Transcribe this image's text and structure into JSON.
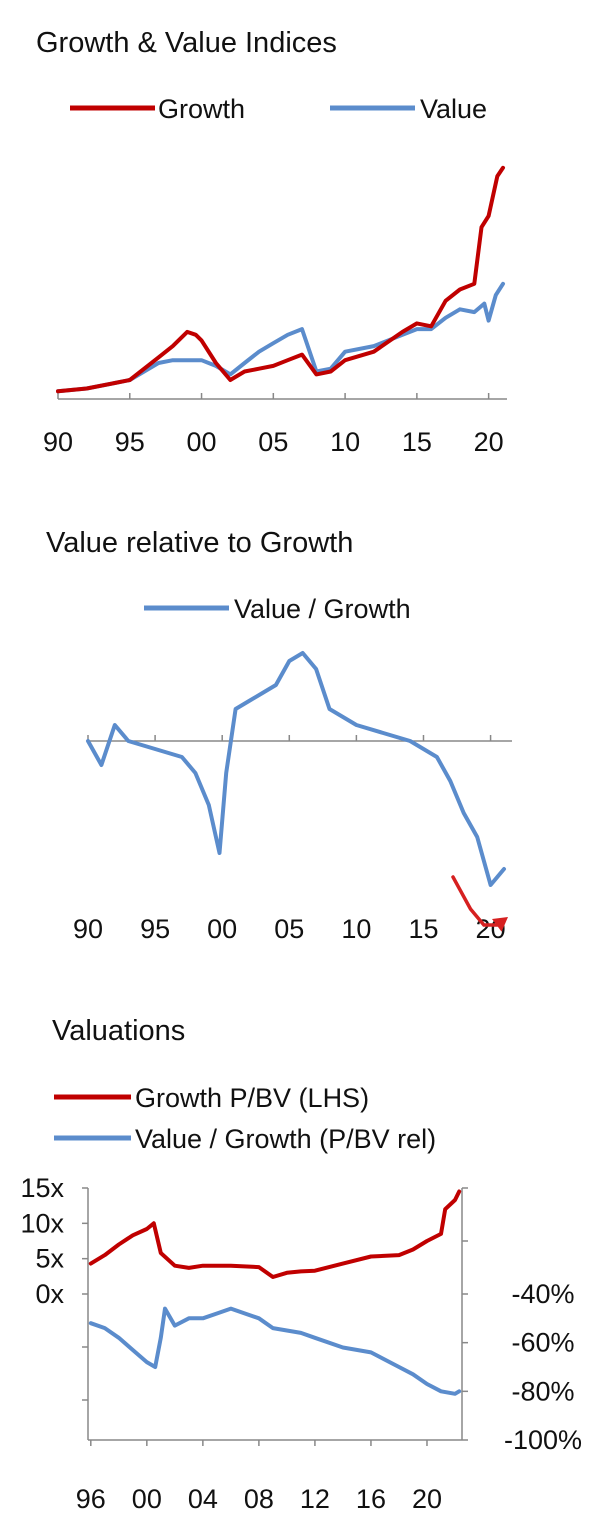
{
  "chart_data": [
    {
      "type": "line",
      "title": "Growth & Value Indices",
      "xlabel": "",
      "ylabel": "",
      "x_ticks": [
        "90",
        "95",
        "00",
        "05",
        "10",
        "15",
        "20"
      ],
      "x_range": [
        1990,
        2021
      ],
      "ylim": [
        0,
        8.2
      ],
      "grid": false,
      "legend": "top",
      "series": [
        {
          "name": "Growth",
          "color": "#c00000",
          "points": [
            [
              1990,
              0.2
            ],
            [
              1992,
              0.3
            ],
            [
              1994,
              0.5
            ],
            [
              1995,
              0.6
            ],
            [
              1997,
              1.4
            ],
            [
              1998,
              1.8
            ],
            [
              1999,
              2.3
            ],
            [
              1999.6,
              2.2
            ],
            [
              2000,
              2.0
            ],
            [
              2001,
              1.2
            ],
            [
              2002,
              0.6
            ],
            [
              2003,
              0.9
            ],
            [
              2004,
              1.0
            ],
            [
              2005,
              1.1
            ],
            [
              2006,
              1.3
            ],
            [
              2007,
              1.5
            ],
            [
              2008,
              0.8
            ],
            [
              2009,
              0.9
            ],
            [
              2010,
              1.3
            ],
            [
              2012,
              1.6
            ],
            [
              2014,
              2.3
            ],
            [
              2015,
              2.6
            ],
            [
              2016,
              2.5
            ],
            [
              2017,
              3.4
            ],
            [
              2018,
              3.8
            ],
            [
              2019,
              4.0
            ],
            [
              2019.5,
              6.0
            ],
            [
              2020,
              6.4
            ],
            [
              2020.6,
              7.8
            ],
            [
              2021,
              8.1
            ]
          ]
        },
        {
          "name": "Value",
          "color": "#5b8ccc",
          "points": [
            [
              1990,
              0.2
            ],
            [
              1992,
              0.3
            ],
            [
              1994,
              0.5
            ],
            [
              1995,
              0.6
            ],
            [
              1997,
              1.2
            ],
            [
              1998,
              1.3
            ],
            [
              1999,
              1.3
            ],
            [
              2000,
              1.3
            ],
            [
              2001,
              1.1
            ],
            [
              2002,
              0.8
            ],
            [
              2003,
              1.2
            ],
            [
              2004,
              1.6
            ],
            [
              2005,
              1.9
            ],
            [
              2006,
              2.2
            ],
            [
              2007,
              2.4
            ],
            [
              2008,
              0.9
            ],
            [
              2009,
              1.0
            ],
            [
              2010,
              1.6
            ],
            [
              2012,
              1.8
            ],
            [
              2014,
              2.2
            ],
            [
              2015,
              2.4
            ],
            [
              2016,
              2.4
            ],
            [
              2017,
              2.8
            ],
            [
              2018,
              3.1
            ],
            [
              2019,
              3.0
            ],
            [
              2019.7,
              3.3
            ],
            [
              2020,
              2.7
            ],
            [
              2020.5,
              3.6
            ],
            [
              2021,
              4.0
            ]
          ]
        }
      ]
    },
    {
      "type": "line",
      "title": "Value relative to Growth",
      "xlabel": "",
      "ylabel": "",
      "x_ticks": [
        "90",
        "95",
        "00",
        "05",
        "10",
        "15",
        "20"
      ],
      "x_range": [
        1990,
        2021
      ],
      "ylim": [
        -1.0,
        0.6
      ],
      "grid": false,
      "legend": "top",
      "series": [
        {
          "name": "Value / Growth",
          "color": "#5b8ccc",
          "points": [
            [
              1990,
              0.0
            ],
            [
              1991,
              -0.15
            ],
            [
              1992,
              0.1
            ],
            [
              1993,
              0.0
            ],
            [
              1995,
              -0.05
            ],
            [
              1997,
              -0.1
            ],
            [
              1998,
              -0.2
            ],
            [
              1999,
              -0.4
            ],
            [
              1999.8,
              -0.7
            ],
            [
              2000.3,
              -0.2
            ],
            [
              2001,
              0.2
            ],
            [
              2002,
              0.25
            ],
            [
              2003,
              0.3
            ],
            [
              2004,
              0.35
            ],
            [
              2005,
              0.5
            ],
            [
              2006,
              0.55
            ],
            [
              2007,
              0.45
            ],
            [
              2008,
              0.2
            ],
            [
              2010,
              0.1
            ],
            [
              2012,
              0.05
            ],
            [
              2014,
              0.0
            ],
            [
              2015,
              -0.05
            ],
            [
              2016,
              -0.1
            ],
            [
              2017,
              -0.25
            ],
            [
              2018,
              -0.45
            ],
            [
              2019,
              -0.6
            ],
            [
              2020,
              -0.9
            ],
            [
              2020.5,
              -0.85
            ],
            [
              2021,
              -0.8
            ]
          ]
        }
      ],
      "annotations": [
        {
          "type": "arrow",
          "color": "#d62020",
          "points": [
            [
              2017.2,
              -0.85
            ],
            [
              2018.5,
              -1.05
            ],
            [
              2019.5,
              -1.15
            ],
            [
              2020.5,
              -1.15
            ],
            [
              2021.3,
              -1.1
            ]
          ]
        }
      ]
    },
    {
      "type": "line",
      "title": "Valuations",
      "xlabel": "",
      "ylabel": "",
      "x_ticks": [
        "96",
        "00",
        "04",
        "08",
        "12",
        "16",
        "20"
      ],
      "x_range": [
        1995.8,
        2022.5
      ],
      "y_left": {
        "ticks": [
          "15x",
          "10x",
          "5x",
          "0x"
        ],
        "values": [
          15,
          10,
          5,
          0
        ],
        "range": [
          0,
          15
        ]
      },
      "y_right": {
        "ticks": [
          "-40%",
          "-60%",
          "-80%",
          "-100%"
        ],
        "values": [
          -40,
          -60,
          -80,
          -100
        ],
        "range": [
          -100,
          -40
        ]
      },
      "grid": false,
      "legend": "top-left",
      "series": [
        {
          "name": "Growth P/BV (LHS)",
          "color": "#c00000",
          "axis": "left",
          "points": [
            [
              1996,
              4.3
            ],
            [
              1997,
              5.5
            ],
            [
              1998,
              7.0
            ],
            [
              1999,
              8.3
            ],
            [
              2000,
              9.2
            ],
            [
              2000.5,
              10.0
            ],
            [
              2001,
              5.8
            ],
            [
              2002,
              4.0
            ],
            [
              2003,
              3.7
            ],
            [
              2004,
              4.0
            ],
            [
              2006,
              4.0
            ],
            [
              2008,
              3.8
            ],
            [
              2009,
              2.4
            ],
            [
              2010,
              3.0
            ],
            [
              2011,
              3.2
            ],
            [
              2012,
              3.3
            ],
            [
              2014,
              4.3
            ],
            [
              2016,
              5.3
            ],
            [
              2018,
              5.5
            ],
            [
              2019,
              6.3
            ],
            [
              2020,
              7.5
            ],
            [
              2021,
              8.5
            ],
            [
              2021.3,
              12.0
            ],
            [
              2022,
              13.3
            ],
            [
              2022.3,
              14.5
            ]
          ]
        },
        {
          "name": "Value / Growth (P/BV rel)",
          "color": "#5b8ccc",
          "axis": "right",
          "points": [
            [
              1996,
              -52
            ],
            [
              1997,
              -54
            ],
            [
              1998,
              -58
            ],
            [
              1999,
              -63
            ],
            [
              2000,
              -68
            ],
            [
              2000.6,
              -70
            ],
            [
              2001,
              -58
            ],
            [
              2001.3,
              -46
            ],
            [
              2002,
              -53
            ],
            [
              2003,
              -50
            ],
            [
              2004,
              -50
            ],
            [
              2005,
              -48
            ],
            [
              2006,
              -46
            ],
            [
              2007,
              -48
            ],
            [
              2008,
              -50
            ],
            [
              2009,
              -54
            ],
            [
              2010,
              -55
            ],
            [
              2011,
              -56
            ],
            [
              2012,
              -58
            ],
            [
              2014,
              -62
            ],
            [
              2016,
              -64
            ],
            [
              2018,
              -70
            ],
            [
              2019,
              -73
            ],
            [
              2020,
              -77
            ],
            [
              2021,
              -80
            ],
            [
              2022,
              -81
            ],
            [
              2022.3,
              -80
            ]
          ]
        }
      ]
    }
  ]
}
